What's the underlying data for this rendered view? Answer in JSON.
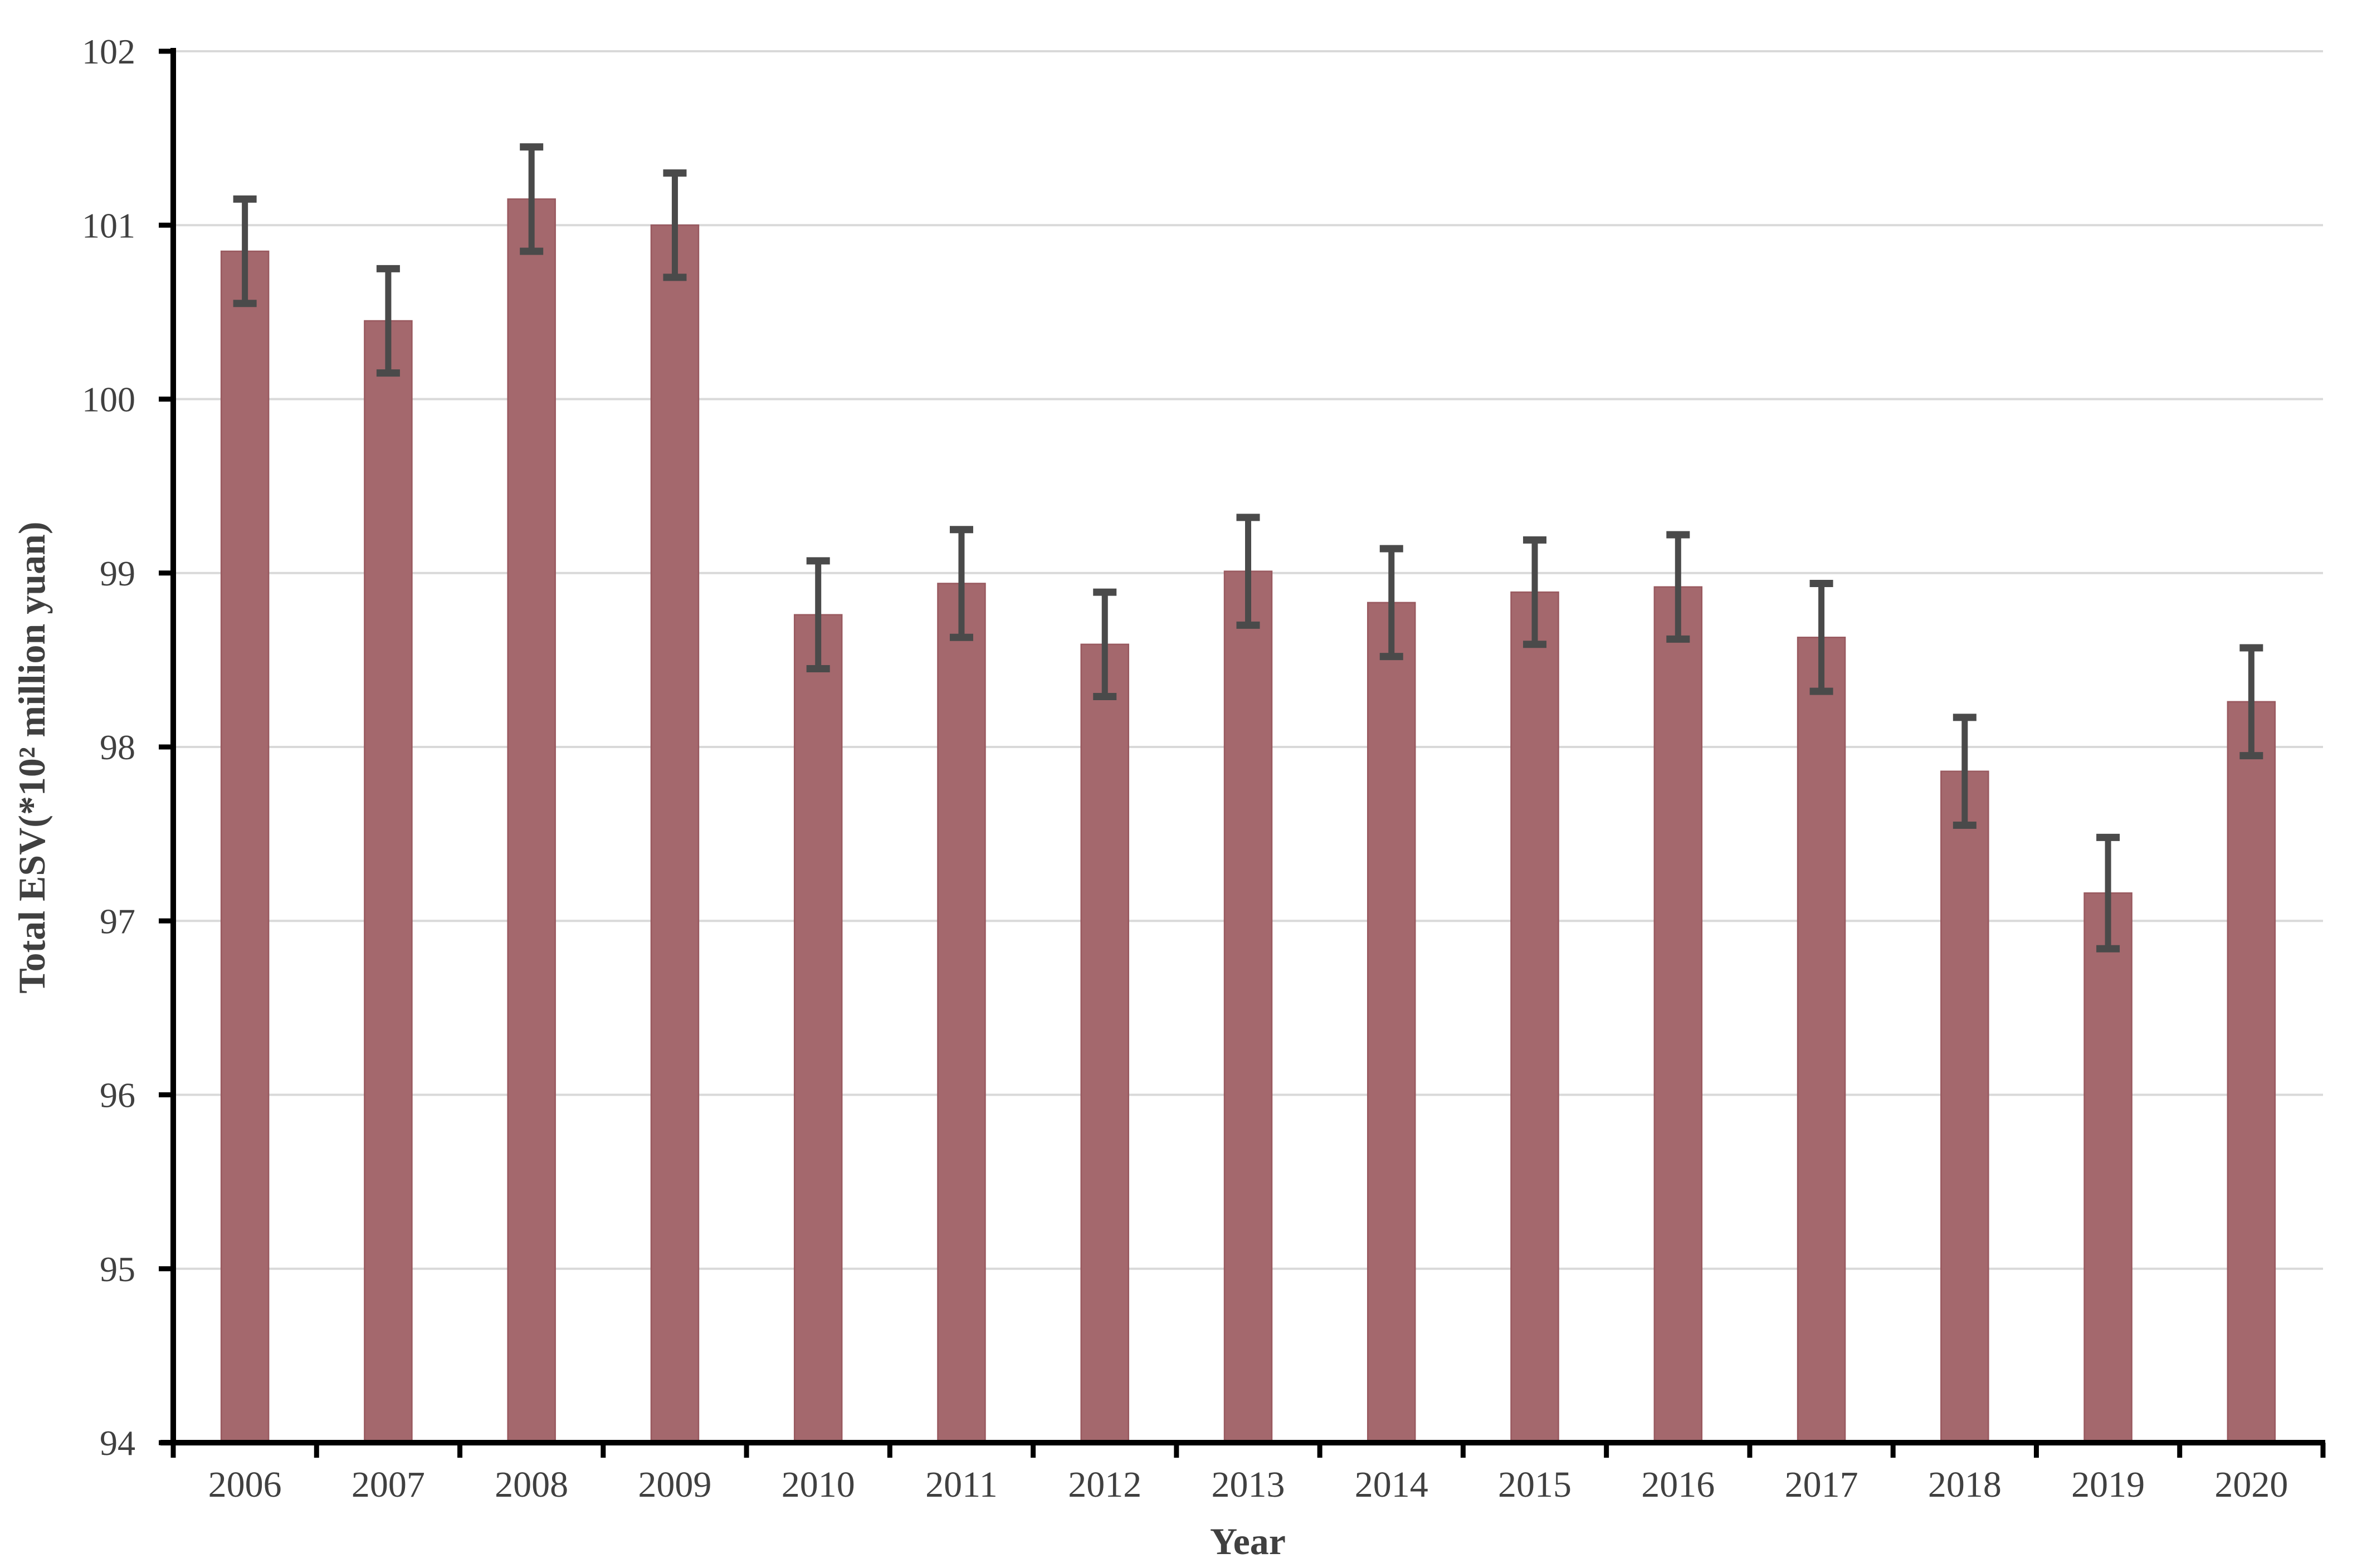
{
  "figure": {
    "background": "#ffffff"
  },
  "chart_data": {
    "type": "bar",
    "title": "",
    "xlabel": "Year",
    "ylabel": "Total ESV(*10² million yuan)",
    "categories": [
      "2006",
      "2007",
      "2008",
      "2009",
      "2010",
      "2011",
      "2012",
      "2013",
      "2014",
      "2015",
      "2016",
      "2017",
      "2018",
      "2019",
      "2020"
    ],
    "series": [
      {
        "name": "Total ESV",
        "values": [
          100.85,
          100.45,
          101.15,
          101.0,
          98.76,
          98.94,
          98.59,
          99.01,
          98.83,
          98.89,
          98.92,
          98.63,
          97.86,
          97.16,
          98.26
        ],
        "error_bars": [
          0.3,
          0.3,
          0.3,
          0.3,
          0.31,
          0.31,
          0.3,
          0.31,
          0.31,
          0.3,
          0.3,
          0.31,
          0.31,
          0.32,
          0.31
        ]
      }
    ],
    "ylim": [
      94,
      102
    ],
    "y_ticks": [
      94,
      95,
      96,
      97,
      98,
      99,
      100,
      101,
      102
    ],
    "y_tick_labels": [
      "94",
      "95",
      "96",
      "97",
      "98",
      "99",
      "100",
      "101",
      "102"
    ],
    "grid": true,
    "legend": false,
    "bar_color": "#A4686D",
    "bar_border_color": "#99595F",
    "error_bar_color": "#4A4A4A",
    "gridline_color": "#D9D9D9",
    "axis_color": "#000000",
    "text_color": "#404040"
  }
}
